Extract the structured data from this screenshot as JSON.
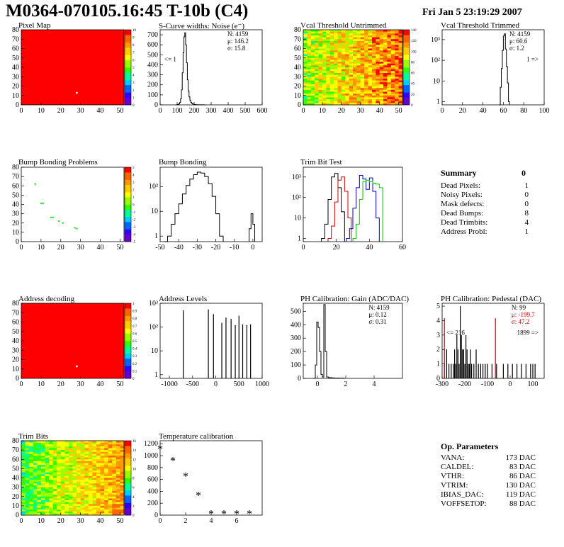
{
  "header": {
    "title": "M0364-070105.16:45 T-10b (C4)",
    "date": "Fri Jan  5 23:19:29 2007"
  },
  "colors": {
    "black": "#000000",
    "red": "#cc0000",
    "blue": "#0000cc",
    "green": "#00cc00",
    "pixel_red": "#ff0000",
    "palette": [
      "#6600cc",
      "#3300ff",
      "#0066ff",
      "#00ccff",
      "#00ff99",
      "#33ff00",
      "#99ff00",
      "#ffff00",
      "#ffcc00",
      "#ff9900",
      "#ff6600",
      "#ff0000"
    ]
  },
  "chart_data": [
    {
      "id": "pixel-map",
      "type": "heatmap",
      "title": "Pixel Map",
      "xlim": [
        0,
        52
      ],
      "ylim": [
        0,
        80
      ],
      "xticks": [
        "0",
        "10",
        "20",
        "30",
        "40",
        "50"
      ],
      "yticks": [
        "0",
        "10",
        "20",
        "30",
        "40",
        "50",
        "60",
        "70",
        "80"
      ],
      "zticks": [
        "0",
        "1",
        "2",
        "3",
        "4",
        "5",
        "6",
        "7",
        "8",
        "9",
        "10"
      ],
      "fill_level": 10,
      "dead_pixels": [
        [
          28,
          13
        ]
      ]
    },
    {
      "id": "noise",
      "type": "line",
      "title": "S-Curve widths: Noise (e⁻)",
      "xlim": [
        0,
        600
      ],
      "ylim": [
        0,
        750
      ],
      "xticks": [
        "0",
        "100",
        "200",
        "300",
        "400",
        "500",
        "600"
      ],
      "yticks": [
        "0",
        "100",
        "200",
        "300",
        "400",
        "500",
        "600",
        "700"
      ],
      "stats": [
        "N: 4159",
        "μ: 146.2",
        "σ: 15.8"
      ],
      "underflow": "<= 1",
      "x": [
        90,
        100,
        105,
        110,
        115,
        120,
        125,
        130,
        135,
        140,
        145,
        150,
        155,
        160,
        165,
        170,
        175,
        180,
        185,
        190,
        195,
        200,
        205,
        210,
        215,
        220,
        225,
        230,
        235,
        240,
        245,
        250,
        260,
        270
      ],
      "values": [
        0,
        2,
        5,
        10,
        25,
        60,
        150,
        320,
        520,
        680,
        720,
        600,
        420,
        250,
        140,
        80,
        45,
        25,
        15,
        10,
        6,
        4,
        3,
        2,
        2,
        1,
        1,
        1,
        0,
        1,
        0,
        1,
        0,
        0
      ]
    },
    {
      "id": "vcal-untrimmed",
      "type": "heatmap",
      "title": "Vcal Threshold Untrimmed",
      "xlim": [
        0,
        52
      ],
      "ylim": [
        0,
        80
      ],
      "xticks": [
        "0",
        "10",
        "20",
        "30",
        "40",
        "50"
      ],
      "yticks": [
        "0",
        "10",
        "20",
        "30",
        "40",
        "50",
        "60",
        "70",
        "80"
      ],
      "zticks": [
        "0",
        "20",
        "40",
        "60",
        "80",
        "100",
        "120",
        "140"
      ],
      "z_low": 80,
      "z_high": 130
    },
    {
      "id": "vcal-trimmed",
      "type": "line",
      "title": "Vcal Threshold Trimmed",
      "xlim": [
        0,
        100
      ],
      "ylim": [
        0.7,
        3000
      ],
      "ylog": true,
      "xticks": [
        "0",
        "20",
        "40",
        "60",
        "80",
        "100"
      ],
      "yticks": [
        "1",
        "10",
        "10²",
        "10³"
      ],
      "stats": [
        "N: 4159",
        "μ: 60.6",
        "σ:  1.2"
      ],
      "overflow": "1 =>",
      "x": [
        56,
        57,
        58,
        59,
        60,
        61,
        62,
        63,
        64,
        65,
        66
      ],
      "values": [
        0,
        5,
        40,
        300,
        1500,
        1900,
        350,
        50,
        8,
        1,
        0
      ]
    },
    {
      "id": "bump-problems",
      "type": "heatmap",
      "title": "Bump Bonding Problems",
      "xlim": [
        0,
        52
      ],
      "ylim": [
        0,
        80
      ],
      "xticks": [
        "0",
        "10",
        "20",
        "30",
        "40",
        "50"
      ],
      "yticks": [
        "0",
        "10",
        "20",
        "30",
        "40",
        "50",
        "60",
        "70",
        "80"
      ],
      "zticks": [
        "-5",
        "-4",
        "-3",
        "-2",
        "-1",
        "0",
        "1",
        "2",
        "3",
        "4",
        "5"
      ],
      "points": [
        [
          7,
          62
        ],
        [
          10,
          41
        ],
        [
          11,
          41
        ],
        [
          15,
          26
        ],
        [
          16,
          26
        ],
        [
          19,
          22
        ],
        [
          21,
          20
        ],
        [
          27,
          15
        ],
        [
          28,
          14
        ]
      ]
    },
    {
      "id": "bump-bonding",
      "type": "line",
      "title": "Bump Bonding",
      "xlim": [
        -50,
        5
      ],
      "ylim": [
        0.6,
        600
      ],
      "ylog": true,
      "xticks": [
        "-50",
        "-40",
        "-30",
        "-20",
        "-10",
        "0"
      ],
      "yticks": [
        "1",
        "10",
        "10²"
      ],
      "x": [
        -48,
        -46,
        -44,
        -42,
        -40,
        -38,
        -36,
        -34,
        -32,
        -30,
        -28,
        -26,
        -24,
        -22,
        -20,
        -18,
        -16
      ],
      "values": [
        0,
        1,
        3,
        8,
        20,
        50,
        110,
        200,
        300,
        380,
        350,
        250,
        130,
        40,
        8,
        1,
        0
      ],
      "peak2_x": [
        -2,
        -1,
        0,
        1
      ],
      "peak2_values": [
        2,
        8,
        3,
        0
      ]
    },
    {
      "id": "trim-bit-test",
      "type": "line",
      "title": "Trim Bit Test",
      "xlim": [
        0,
        60
      ],
      "ylim": [
        0.7,
        3000
      ],
      "ylog": true,
      "xticks": [
        "0",
        "20",
        "40",
        "60"
      ],
      "yticks": [
        "1",
        "10",
        "10²",
        "10³"
      ],
      "series": [
        {
          "color": "#000000",
          "x": [
            11,
            13,
            15,
            17,
            19,
            21,
            23,
            25
          ],
          "values": [
            1,
            5,
            80,
            1000,
            1500,
            300,
            20,
            1
          ]
        },
        {
          "color": "#cc0000",
          "x": [
            15,
            17,
            19,
            21,
            23,
            25,
            27,
            29
          ],
          "values": [
            1,
            4,
            60,
            700,
            1000,
            200,
            10,
            1
          ]
        },
        {
          "color": "#0000cc",
          "x": [
            26,
            28,
            30,
            32,
            34,
            36,
            38,
            40,
            42,
            44,
            46
          ],
          "values": [
            1,
            3,
            30,
            300,
            1200,
            800,
            250,
            900,
            200,
            10,
            1
          ]
        },
        {
          "color": "#00cc00",
          "x": [
            30,
            32,
            34,
            36,
            38,
            40,
            42,
            44,
            46,
            48
          ],
          "values": [
            1,
            5,
            80,
            600,
            700,
            600,
            500,
            450,
            300,
            1
          ]
        }
      ]
    },
    {
      "id": "address-decoding",
      "type": "heatmap",
      "title": "Address decoding",
      "xlim": [
        0,
        52
      ],
      "ylim": [
        0,
        80
      ],
      "xticks": [
        "0",
        "10",
        "20",
        "30",
        "40",
        "50"
      ],
      "yticks": [
        "0",
        "10",
        "20",
        "30",
        "40",
        "50",
        "60",
        "70",
        "80"
      ],
      "zticks": [
        "0",
        "0.1",
        "0.2",
        "0.3",
        "0.4",
        "0.5",
        "0.6",
        "0.7",
        "0.8",
        "0.9",
        "1"
      ],
      "fill_level": 1,
      "dead_pixels": [
        [
          28,
          13
        ]
      ]
    },
    {
      "id": "address-levels",
      "type": "bar",
      "title": "Address Levels",
      "xlim": [
        -1200,
        1000
      ],
      "ylim": [
        0.7,
        1000
      ],
      "ylog": true,
      "xticks": [
        "-1000",
        "-500",
        "0",
        "500",
        "1000"
      ],
      "yticks": [
        "1",
        "10",
        "10²",
        "10³"
      ],
      "x": [
        -700,
        -160,
        -50,
        130,
        220,
        330,
        420,
        500,
        580,
        670,
        750
      ],
      "values": [
        500,
        550,
        350,
        150,
        250,
        220,
        120,
        300,
        130,
        120,
        130
      ]
    },
    {
      "id": "ph-gain",
      "type": "line",
      "title": "PH Calibration: Gain (ADC/DAC)",
      "xlim": [
        -1,
        6
      ],
      "ylim": [
        0,
        560
      ],
      "xticks": [
        "0",
        "2",
        "4"
      ],
      "yticks": [
        "0",
        "100",
        "200",
        "300",
        "400",
        "500"
      ],
      "stats": [
        "N: 4159",
        "μ: 0.12",
        "σ: 0.31"
      ],
      "x": [
        -0.3,
        -0.15,
        -0.05,
        0.05,
        0.15,
        0.25,
        0.35,
        0.45,
        0.55,
        0.65,
        0.8,
        1.0,
        1.2,
        1.5,
        1.9
      ],
      "values": [
        0,
        100,
        420,
        380,
        200,
        30,
        10,
        550,
        200,
        10,
        5,
        3,
        2,
        1,
        0
      ]
    },
    {
      "id": "ph-pedestal",
      "type": "bar",
      "title": "PH Calibration: Pedestal (DAC)",
      "xlim": [
        -300,
        150
      ],
      "ylim": [
        0,
        5.2
      ],
      "xticks": [
        "-300",
        "-200",
        "-100",
        "0",
        "100"
      ],
      "yticks": [
        "0",
        "1",
        "2",
        "3",
        "4",
        "5"
      ],
      "stats_black": [
        "N:   99"
      ],
      "stats_red": [
        "μ: -199.7",
        "σ: 47.2"
      ],
      "underflow": "<= 216",
      "overflow": "1899 =>",
      "x": [
        -290,
        -280,
        -270,
        -260,
        -250,
        -245,
        -240,
        -235,
        -230,
        -225,
        -220,
        -215,
        -210,
        -205,
        -200,
        -195,
        -190,
        -185,
        -180,
        -175,
        -170,
        -160,
        -150,
        -140,
        -130,
        -120,
        -110,
        -100,
        -80,
        -60,
        -30,
        -10,
        10,
        30,
        50,
        70,
        90,
        100,
        110
      ],
      "values": [
        1,
        2,
        1,
        1,
        1,
        2,
        1,
        3,
        2,
        1,
        5,
        3,
        2,
        2,
        1,
        3,
        2,
        1,
        1,
        2,
        1,
        1,
        2,
        1,
        1,
        1,
        1,
        1,
        1,
        1,
        1,
        1,
        1,
        1,
        1,
        1,
        1,
        1,
        1
      ],
      "red_lines": [
        -290,
        -65
      ]
    },
    {
      "id": "trim-bits",
      "type": "heatmap",
      "title": "Trim Bits",
      "xlim": [
        0,
        52
      ],
      "ylim": [
        0,
        80
      ],
      "xticks": [
        "0",
        "10",
        "20",
        "30",
        "40",
        "50"
      ],
      "yticks": [
        "0",
        "10",
        "20",
        "30",
        "40",
        "50",
        "60",
        "70",
        "80"
      ],
      "zticks": [
        "0",
        "2",
        "4",
        "6",
        "8",
        "10",
        "12",
        "14",
        "16"
      ],
      "z_low": 6,
      "z_high": 11
    },
    {
      "id": "temperature",
      "type": "scatter",
      "title": "Temperature calibration",
      "xlim": [
        0,
        8
      ],
      "ylim": [
        0,
        1250
      ],
      "xticks": [
        "0",
        "2",
        "4",
        "6"
      ],
      "yticks": [
        "0",
        "200",
        "400",
        "600",
        "800",
        "1000",
        "1200"
      ],
      "x": [
        0,
        1,
        2,
        3,
        4,
        5,
        6,
        7
      ],
      "values": [
        1120,
        920,
        660,
        340,
        30,
        30,
        30,
        30
      ]
    }
  ],
  "summary": {
    "title": "Summary",
    "total": "0",
    "rows": [
      {
        "label": "Dead Pixels:",
        "value": "1"
      },
      {
        "label": "Noisy Pixels:",
        "value": "0"
      },
      {
        "label": "Mask defects:",
        "value": "0"
      },
      {
        "label": "Dead Bumps:",
        "value": "8"
      },
      {
        "label": "Dead Trimbits:",
        "value": "4"
      },
      {
        "label": "Address Probl:",
        "value": "1"
      }
    ]
  },
  "op_params": {
    "title": "Op. Parameters",
    "rows": [
      {
        "label": "VANA:",
        "value": "173 DAC"
      },
      {
        "label": "CALDEL:",
        "value": "83 DAC"
      },
      {
        "label": "VTHR:",
        "value": "86 DAC"
      },
      {
        "label": "VTRIM:",
        "value": "130 DAC"
      },
      {
        "label": "IBIAS_DAC:",
        "value": "119 DAC"
      },
      {
        "label": "VOFFSETOP:",
        "value": "88 DAC"
      }
    ]
  }
}
